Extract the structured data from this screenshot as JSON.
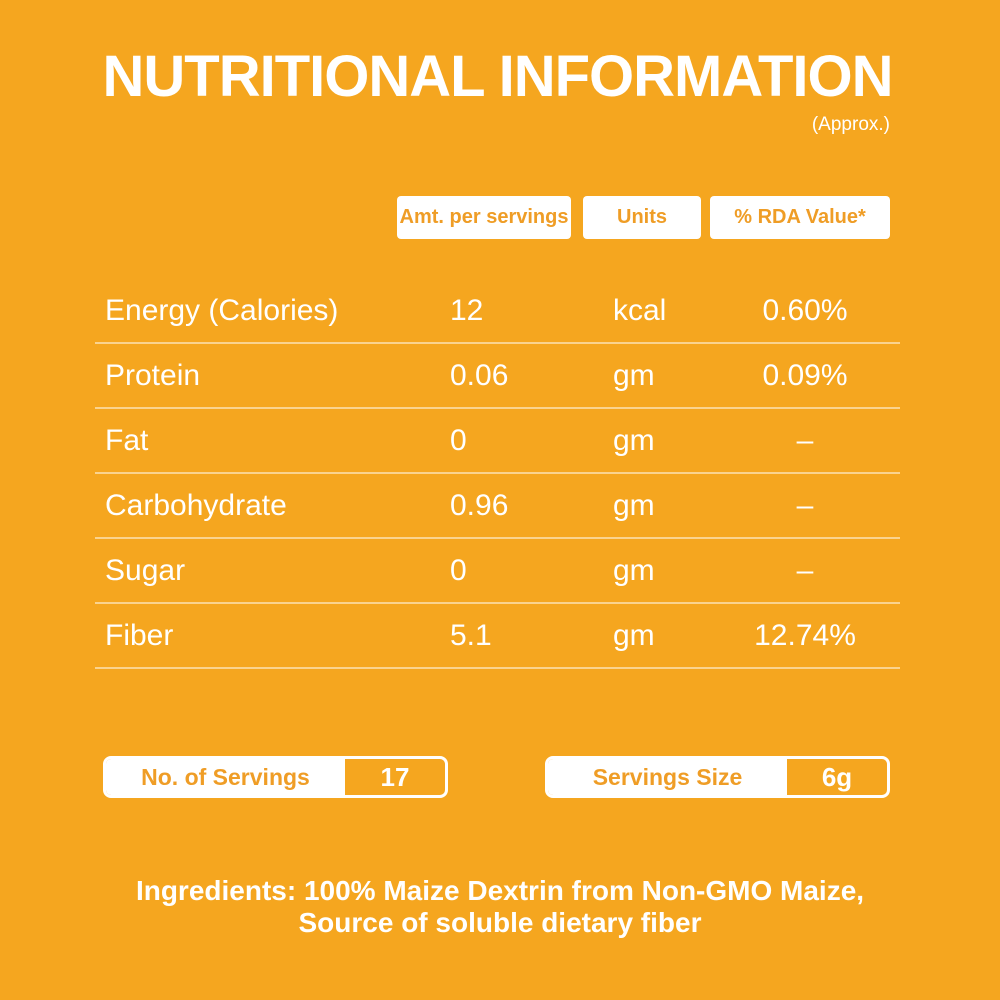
{
  "theme": {
    "background": "#F5A61F",
    "accent_orange": "#EF9D26",
    "text_white": "#FFFFFF"
  },
  "header": {
    "title": "NUTRITIONAL INFORMATION",
    "approx_note": "(Approx.)"
  },
  "table": {
    "column_headers": [
      "Amt. per servings",
      "Units",
      "% RDA Value*"
    ],
    "rows": [
      {
        "label": "Energy (Calories)",
        "amount": "12",
        "units": "kcal",
        "rda": "0.60%"
      },
      {
        "label": "Protein",
        "amount": "0.06",
        "units": "gm",
        "rda": "0.09%"
      },
      {
        "label": "Fat",
        "amount": "0",
        "units": "gm",
        "rda": "–"
      },
      {
        "label": "Carbohydrate",
        "amount": "0.96",
        "units": "gm",
        "rda": "–"
      },
      {
        "label": "Sugar",
        "amount": "0",
        "units": "gm",
        "rda": "–"
      },
      {
        "label": "Fiber",
        "amount": "5.1",
        "units": "gm",
        "rda": "12.74%"
      }
    ]
  },
  "servings": {
    "count": {
      "label": "No. of Servings",
      "value": "17"
    },
    "size": {
      "label": "Servings Size",
      "value": "6g"
    }
  },
  "ingredients": {
    "line1": "Ingredients: 100% Maize Dextrin from Non-GMO Maize,",
    "line2": "Source of soluble dietary fiber"
  }
}
